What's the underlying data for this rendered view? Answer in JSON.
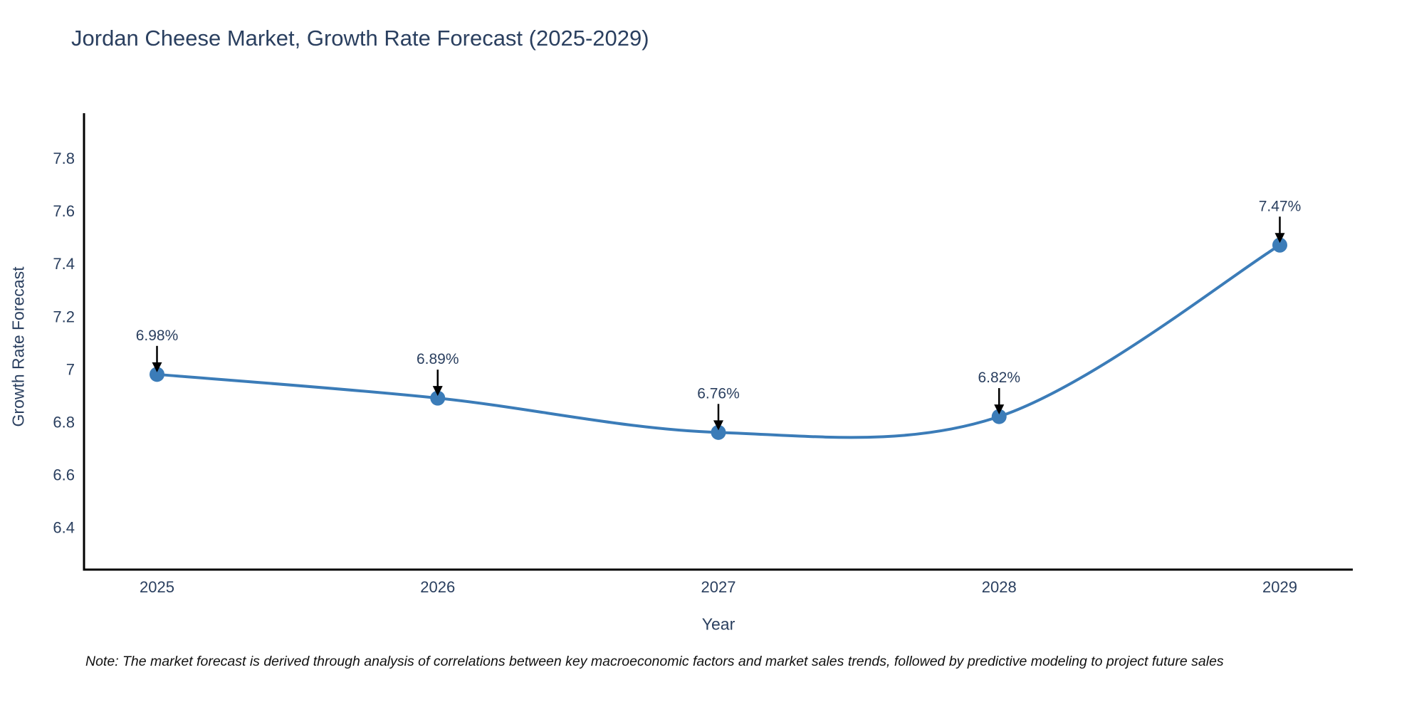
{
  "title": "Jordan Cheese Market, Growth Rate Forecast (2025-2029)",
  "footnote": "Note: The market forecast is derived through analysis of correlations between key macroeconomic factors and market sales trends, followed by predictive modeling to project future sales",
  "chart_data": {
    "type": "line",
    "title": "Jordan Cheese Market, Growth Rate Forecast (2025-2029)",
    "xlabel": "Year",
    "ylabel": "Growth Rate Forecast",
    "x": [
      2025,
      2026,
      2027,
      2028,
      2029
    ],
    "y": [
      6.98,
      6.89,
      6.76,
      6.82,
      7.47
    ],
    "point_labels": [
      "6.98%",
      "6.89%",
      "6.76%",
      "6.82%",
      "7.47%"
    ],
    "xticks": [
      "2025",
      "2026",
      "2027",
      "2028",
      "2029"
    ],
    "yticks": [
      "7.8",
      "7.6",
      "7.4",
      "7.2",
      "7",
      "6.8",
      "6.6",
      "6.4"
    ],
    "xlim": [
      2024.74,
      2029.26
    ],
    "ylim": [
      6.24,
      7.97
    ],
    "line_shape": "spline",
    "grid": false,
    "legend": "none",
    "colors": {
      "line": "#3b7cb8",
      "marker": "#3b7cb8",
      "axis": "#000000",
      "arrow": "#000000",
      "text": "#2a3f5f"
    }
  }
}
